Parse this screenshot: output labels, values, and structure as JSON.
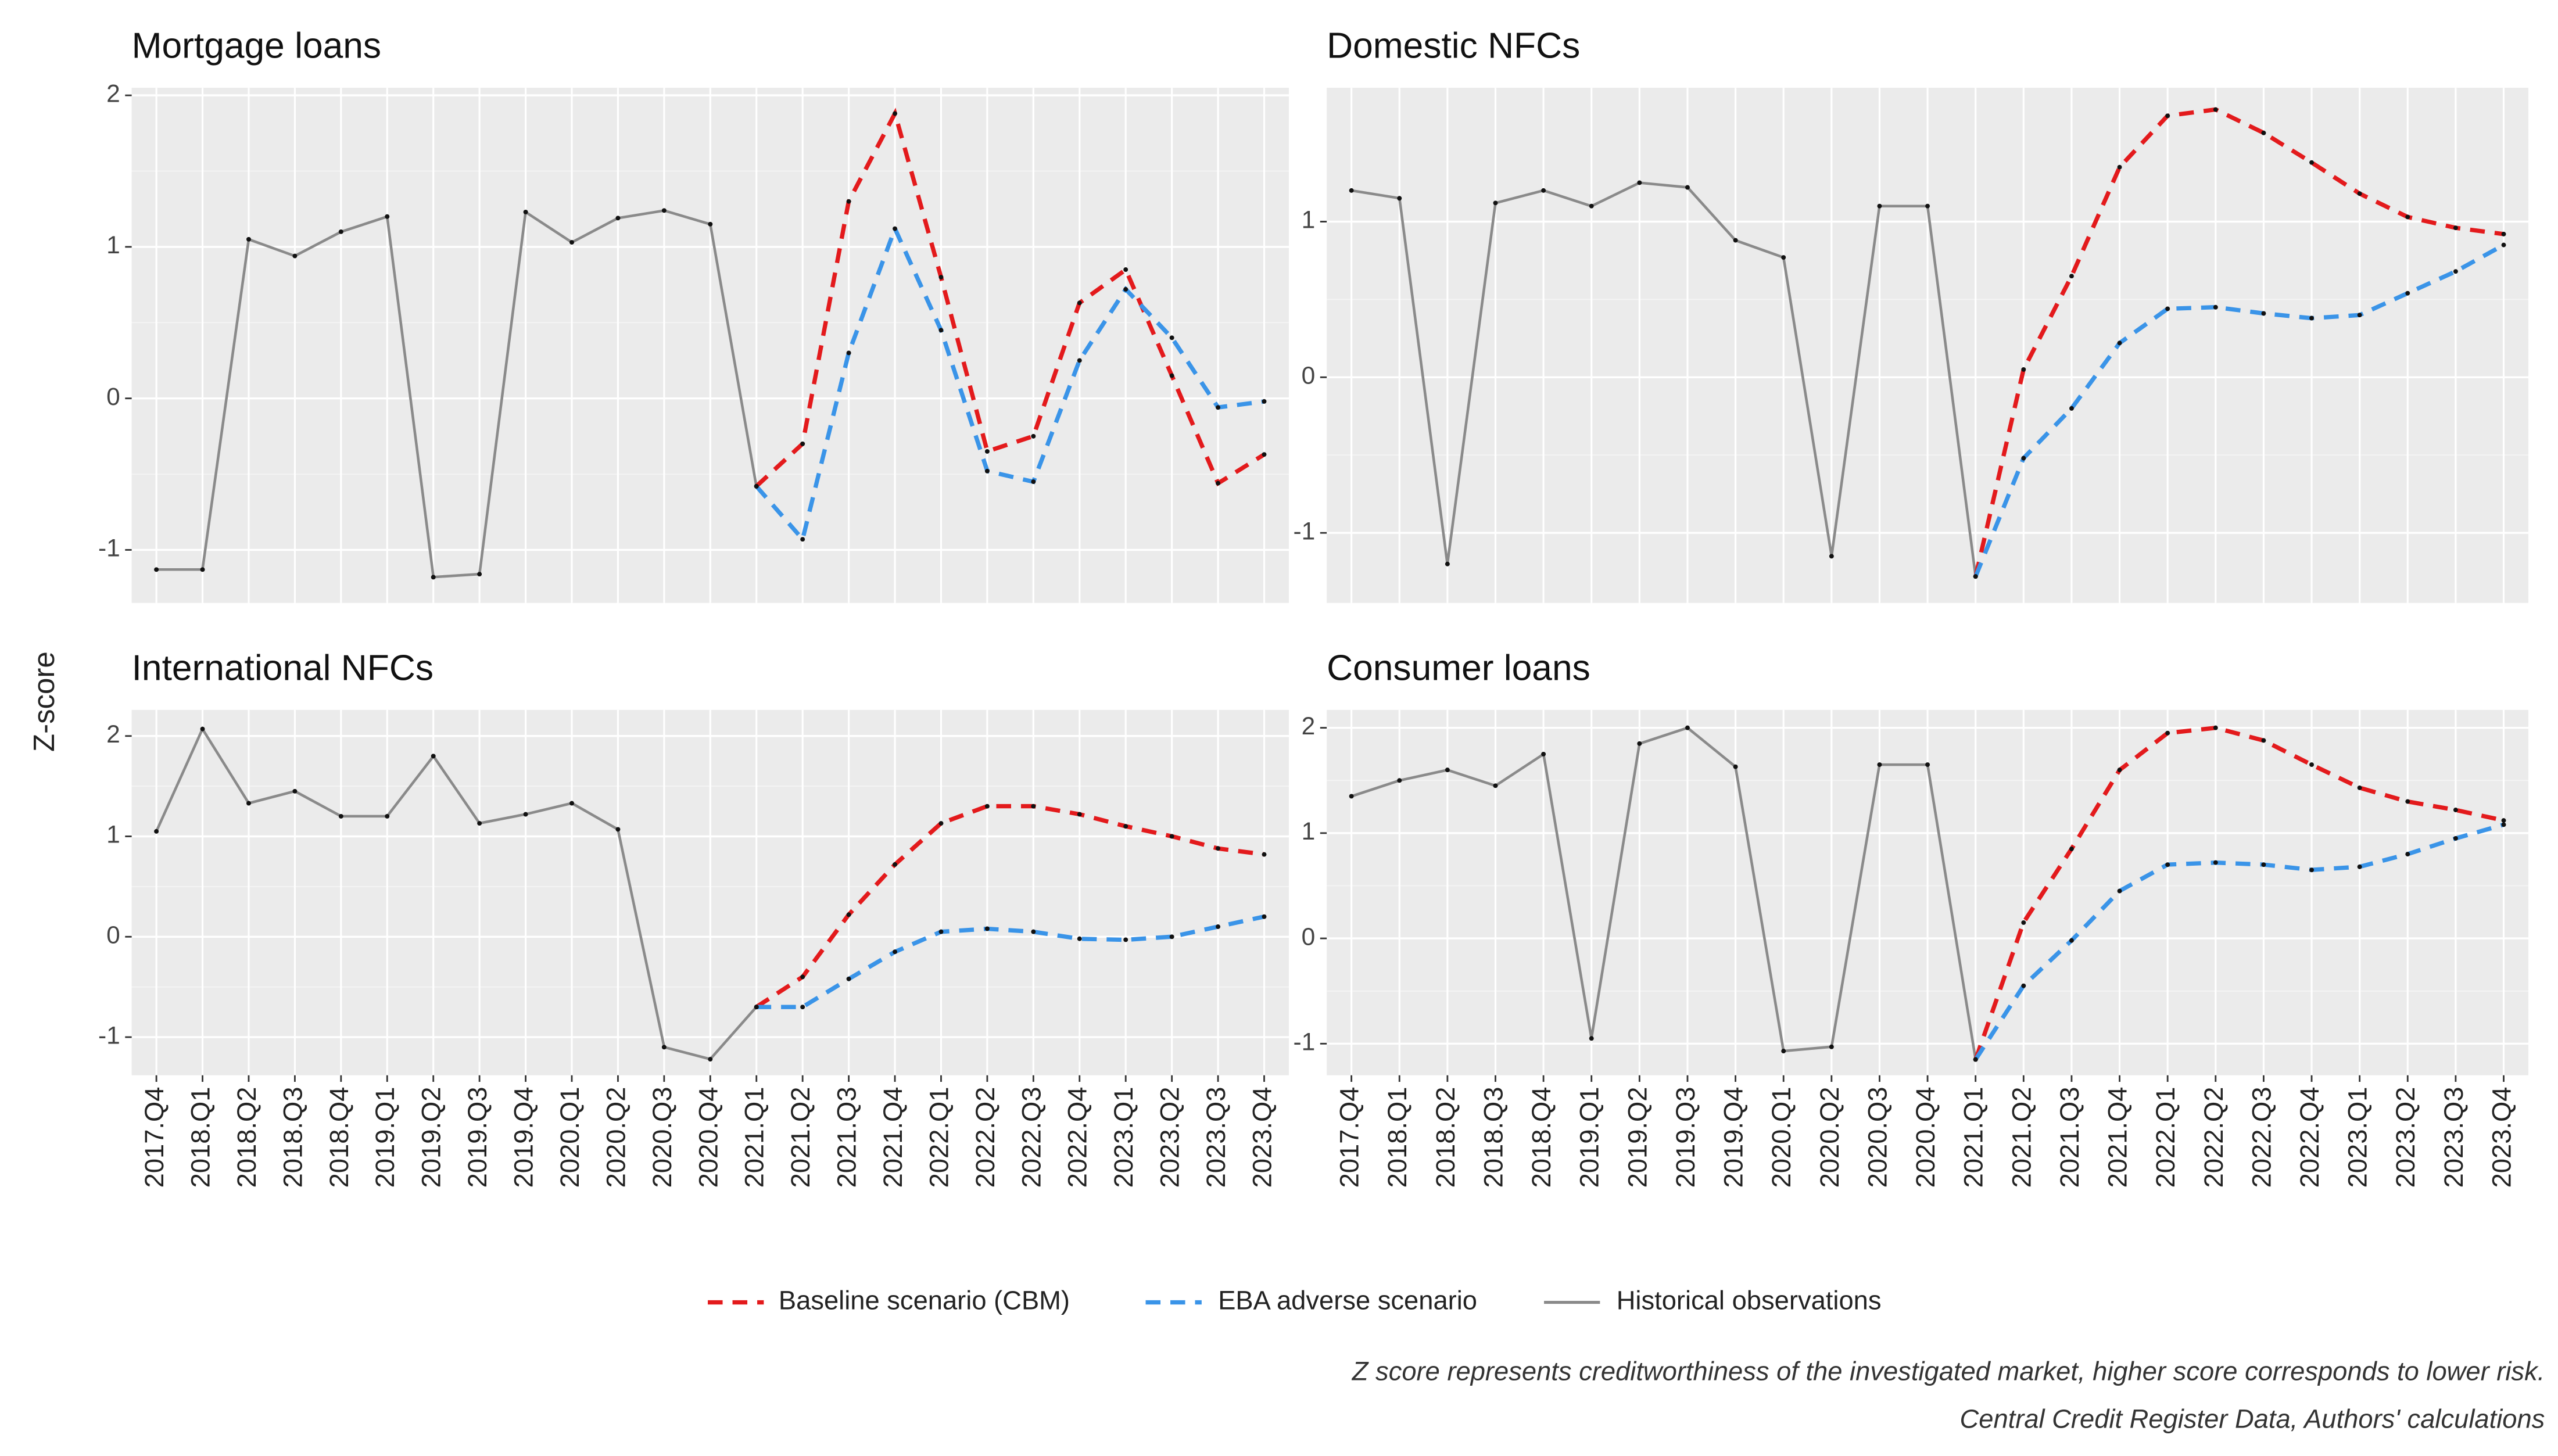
{
  "y_label": "Z-score",
  "notes": [
    "Z score represents creditworthiness of the investigated market, higher score corresponds to lower risk.",
    "Central Credit Register Data, Authors' calculations"
  ],
  "chart_data": [
    {
      "type": "line",
      "title": "Mortgage loans",
      "categories": [
        "2017.Q4",
        "2018.Q1",
        "2018.Q2",
        "2018.Q3",
        "2018.Q4",
        "2019.Q1",
        "2019.Q2",
        "2019.Q3",
        "2019.Q4",
        "2020.Q1",
        "2020.Q2",
        "2020.Q3",
        "2020.Q4",
        "2021.Q1",
        "2021.Q2",
        "2021.Q3",
        "2021.Q4",
        "2022.Q1",
        "2022.Q2",
        "2022.Q3",
        "2022.Q4",
        "2023.Q1",
        "2023.Q2",
        "2023.Q3",
        "2023.Q4"
      ],
      "ylim": [
        -1.35,
        2.05
      ],
      "yticks": [
        -1,
        0,
        1,
        2
      ],
      "grid": true,
      "series": [
        {
          "name": "Baseline scenario (CBM)",
          "color": "#e31a1c",
          "dash": true,
          "values": [
            null,
            null,
            null,
            null,
            null,
            null,
            null,
            null,
            null,
            null,
            null,
            null,
            null,
            -0.58,
            -0.3,
            1.3,
            1.88,
            0.8,
            -0.35,
            -0.25,
            0.63,
            0.85,
            0.15,
            -0.56,
            -0.37
          ]
        },
        {
          "name": "EBA adverse scenario",
          "color": "#3a94e8",
          "dash": true,
          "values": [
            null,
            null,
            null,
            null,
            null,
            null,
            null,
            null,
            null,
            null,
            null,
            null,
            null,
            -0.58,
            -0.93,
            0.3,
            1.12,
            0.45,
            -0.48,
            -0.55,
            0.25,
            0.72,
            0.4,
            -0.06,
            -0.02
          ]
        },
        {
          "name": "Historical observations",
          "color": "#8a8a8a",
          "dash": false,
          "values": [
            -1.13,
            -1.13,
            1.05,
            0.94,
            1.1,
            1.2,
            -1.18,
            -1.16,
            1.23,
            1.03,
            1.19,
            1.24,
            1.15,
            -0.58,
            null,
            null,
            null,
            null,
            null,
            null,
            null,
            null,
            null,
            null,
            null
          ]
        }
      ]
    },
    {
      "type": "line",
      "title": "Domestic NFCs",
      "categories": [
        "2017.Q4",
        "2018.Q1",
        "2018.Q2",
        "2018.Q3",
        "2018.Q4",
        "2019.Q1",
        "2019.Q2",
        "2019.Q3",
        "2019.Q4",
        "2020.Q1",
        "2020.Q2",
        "2020.Q3",
        "2020.Q4",
        "2021.Q1",
        "2021.Q2",
        "2021.Q3",
        "2021.Q4",
        "2022.Q1",
        "2022.Q2",
        "2022.Q3",
        "2022.Q4",
        "2023.Q1",
        "2023.Q2",
        "2023.Q3",
        "2023.Q4"
      ],
      "ylim": [
        -1.45,
        1.86
      ],
      "yticks": [
        -1,
        0,
        1
      ],
      "grid": true,
      "series": [
        {
          "name": "Baseline scenario (CBM)",
          "color": "#e31a1c",
          "dash": true,
          "values": [
            null,
            null,
            null,
            null,
            null,
            null,
            null,
            null,
            null,
            null,
            null,
            null,
            null,
            -1.28,
            0.05,
            0.65,
            1.35,
            1.68,
            1.72,
            1.57,
            1.38,
            1.18,
            1.03,
            0.96,
            0.92
          ]
        },
        {
          "name": "EBA adverse scenario",
          "color": "#3a94e8",
          "dash": true,
          "values": [
            null,
            null,
            null,
            null,
            null,
            null,
            null,
            null,
            null,
            null,
            null,
            null,
            null,
            -1.28,
            -0.52,
            -0.2,
            0.22,
            0.44,
            0.45,
            0.41,
            0.38,
            0.4,
            0.54,
            0.68,
            0.85
          ]
        },
        {
          "name": "Historical observations",
          "color": "#8a8a8a",
          "dash": false,
          "values": [
            1.2,
            1.15,
            -1.2,
            1.12,
            1.2,
            1.1,
            1.25,
            1.22,
            0.88,
            0.77,
            -1.15,
            1.1,
            1.1,
            -1.28,
            null,
            null,
            null,
            null,
            null,
            null,
            null,
            null,
            null,
            null,
            null
          ]
        }
      ]
    },
    {
      "type": "line",
      "title": "International NFCs",
      "categories": [
        "2017.Q4",
        "2018.Q1",
        "2018.Q2",
        "2018.Q3",
        "2018.Q4",
        "2019.Q1",
        "2019.Q2",
        "2019.Q3",
        "2019.Q4",
        "2020.Q1",
        "2020.Q2",
        "2020.Q3",
        "2020.Q4",
        "2021.Q1",
        "2021.Q2",
        "2021.Q3",
        "2021.Q4",
        "2022.Q1",
        "2022.Q2",
        "2022.Q3",
        "2022.Q4",
        "2023.Q1",
        "2023.Q2",
        "2023.Q3",
        "2023.Q4"
      ],
      "ylim": [
        -1.38,
        2.26
      ],
      "yticks": [
        -1,
        0,
        1,
        2
      ],
      "grid": true,
      "series": [
        {
          "name": "Baseline scenario (CBM)",
          "color": "#e31a1c",
          "dash": true,
          "values": [
            null,
            null,
            null,
            null,
            null,
            null,
            null,
            null,
            null,
            null,
            null,
            null,
            null,
            -0.7,
            -0.4,
            0.22,
            0.72,
            1.13,
            1.3,
            1.3,
            1.22,
            1.1,
            1.0,
            0.88,
            0.82
          ]
        },
        {
          "name": "EBA adverse scenario",
          "color": "#3a94e8",
          "dash": true,
          "values": [
            null,
            null,
            null,
            null,
            null,
            null,
            null,
            null,
            null,
            null,
            null,
            null,
            null,
            -0.7,
            -0.7,
            -0.42,
            -0.15,
            0.05,
            0.08,
            0.05,
            -0.02,
            -0.03,
            0.0,
            0.1,
            0.2
          ]
        },
        {
          "name": "Historical observations",
          "color": "#8a8a8a",
          "dash": false,
          "values": [
            1.05,
            2.07,
            1.33,
            1.45,
            1.2,
            1.2,
            1.8,
            1.13,
            1.22,
            1.33,
            1.07,
            -1.1,
            -1.22,
            -0.7,
            null,
            null,
            null,
            null,
            null,
            null,
            null,
            null,
            null,
            null,
            null
          ]
        }
      ]
    },
    {
      "type": "line",
      "title": "Consumer loans",
      "categories": [
        "2017.Q4",
        "2018.Q1",
        "2018.Q2",
        "2018.Q3",
        "2018.Q4",
        "2019.Q1",
        "2019.Q2",
        "2019.Q3",
        "2019.Q4",
        "2020.Q1",
        "2020.Q2",
        "2020.Q3",
        "2020.Q4",
        "2021.Q1",
        "2021.Q2",
        "2021.Q3",
        "2021.Q4",
        "2022.Q1",
        "2022.Q2",
        "2022.Q3",
        "2022.Q4",
        "2023.Q1",
        "2023.Q2",
        "2023.Q3",
        "2023.Q4"
      ],
      "ylim": [
        -1.3,
        2.17
      ],
      "yticks": [
        -1,
        0,
        1,
        2
      ],
      "grid": true,
      "series": [
        {
          "name": "Baseline scenario (CBM)",
          "color": "#e31a1c",
          "dash": true,
          "values": [
            null,
            null,
            null,
            null,
            null,
            null,
            null,
            null,
            null,
            null,
            null,
            null,
            null,
            -1.15,
            0.15,
            0.85,
            1.6,
            1.95,
            2.0,
            1.88,
            1.65,
            1.43,
            1.3,
            1.22,
            1.12
          ]
        },
        {
          "name": "EBA adverse scenario",
          "color": "#3a94e8",
          "dash": true,
          "values": [
            null,
            null,
            null,
            null,
            null,
            null,
            null,
            null,
            null,
            null,
            null,
            null,
            null,
            -1.15,
            -0.45,
            -0.02,
            0.45,
            0.7,
            0.72,
            0.7,
            0.65,
            0.68,
            0.8,
            0.95,
            1.08
          ]
        },
        {
          "name": "Historical observations",
          "color": "#8a8a8a",
          "dash": false,
          "values": [
            1.35,
            1.5,
            1.6,
            1.45,
            1.75,
            -0.95,
            1.85,
            2.0,
            1.63,
            -1.07,
            -1.03,
            1.65,
            1.65,
            -1.15,
            null,
            null,
            null,
            null,
            null,
            null,
            null,
            null,
            null,
            null,
            null
          ]
        }
      ]
    }
  ]
}
